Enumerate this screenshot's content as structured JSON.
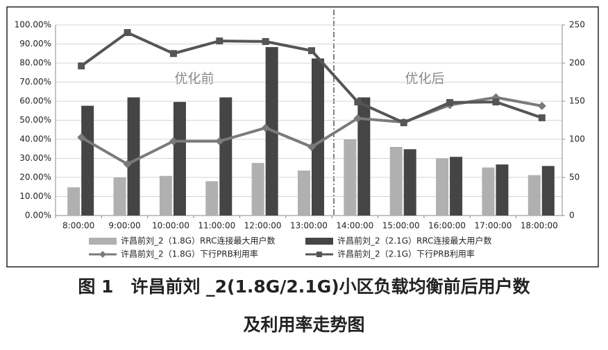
{
  "chart_data": {
    "type": "bar",
    "caption": [
      "图 1　许昌前刘 _2(1.8G/2.1G)小区负载均衡前后用户数",
      "及利用率走势图"
    ],
    "annotations": [
      "优化前",
      "优化后"
    ],
    "categories": [
      "8:00:00",
      "9:00:00",
      "10:00:00",
      "11:00:00",
      "12:00:00",
      "13:00:00",
      "14:00:00",
      "15:00:00",
      "16:00:00",
      "17:00:00",
      "18:00:00"
    ],
    "series": [
      {
        "name": "许昌前刘_2（1.8G）RRC连接最大用户数",
        "type": "bar",
        "axis": "y2",
        "color": "#b0b0b0",
        "values": [
          37,
          50,
          52,
          45,
          69,
          59,
          100,
          90,
          75,
          63,
          53
        ]
      },
      {
        "name": "许昌前刘_2（2.1G）RRC连接最大用户数",
        "type": "bar",
        "axis": "y2",
        "color": "#454545",
        "values": [
          144,
          155,
          149,
          155,
          221,
          206,
          155,
          87,
          77,
          67,
          65
        ]
      },
      {
        "name": "许昌前刘_2（1.8G）下行PRB利用率",
        "type": "line",
        "marker": "diamond",
        "color": "#7a7a7a",
        "values": [
          41,
          27,
          39,
          39,
          46,
          36,
          51,
          49,
          58,
          62,
          57.5
        ]
      },
      {
        "name": "许昌前刘_2（2.1G）下行PRB利用率",
        "type": "line",
        "marker": "square",
        "color": "#555555",
        "values": [
          78.5,
          96,
          85,
          91.6,
          91.3,
          86.5,
          59.6,
          48.7,
          59.3,
          59.6,
          51.3
        ]
      }
    ],
    "ylim": [
      0,
      100
    ],
    "yticks": [
      {
        "value": 0,
        "label": "0.00%"
      },
      {
        "value": 10,
        "label": "10.00%"
      },
      {
        "value": 20,
        "label": "20.00%"
      },
      {
        "value": 30,
        "label": "30.00%"
      },
      {
        "value": 40,
        "label": "40.00%"
      },
      {
        "value": 50,
        "label": "50.00%"
      },
      {
        "value": 60,
        "label": "60.00%"
      },
      {
        "value": 70,
        "label": "70.00%"
      },
      {
        "value": 80,
        "label": "80.00%"
      },
      {
        "value": 90,
        "label": "90.00%"
      },
      {
        "value": 100,
        "label": "100.00%"
      }
    ],
    "y2lim": [
      0,
      250
    ],
    "y2ticks": [
      0,
      50,
      100,
      150,
      200,
      250
    ],
    "grid": true
  }
}
